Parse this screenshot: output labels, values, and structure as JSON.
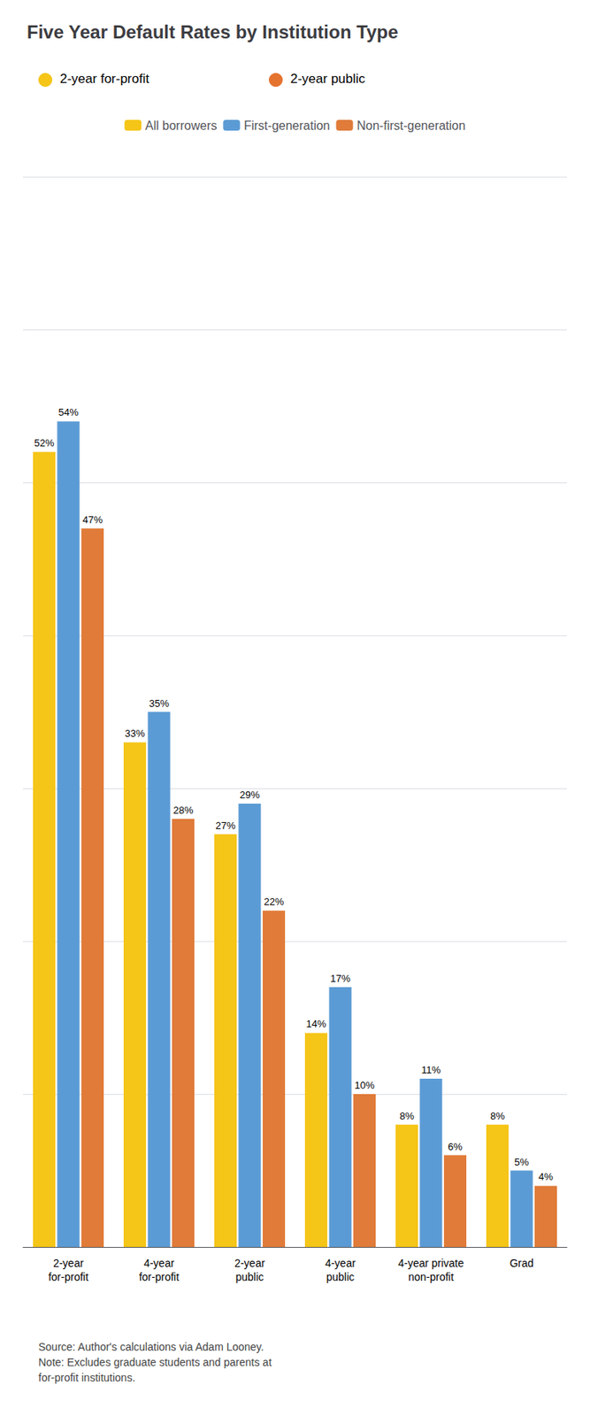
{
  "chart_data": {
    "type": "bar",
    "title": "Five Year Default Rates by Institution Type",
    "categories": [
      "2-year\nfor-profit",
      "4-year\nfor-profit",
      "2-year\npublic",
      "4-year\npublic",
      "4-year private\nnon-profit",
      "Grad"
    ],
    "series": [
      {
        "name": "All borrowers",
        "color": "#f5c518",
        "values": [
          52,
          33,
          27,
          14,
          8,
          8
        ],
        "value_labels": [
          "52%",
          "33%",
          "27%",
          "14%",
          "8%",
          "8%"
        ]
      },
      {
        "name": "First-generation",
        "color": "#5b9bd5",
        "values": [
          54,
          35,
          29,
          17,
          11,
          5
        ],
        "value_labels": [
          "54%",
          "35%",
          "29%",
          "17%",
          "11%",
          "5%"
        ]
      },
      {
        "name": "Non-first-generation",
        "color": "#e07b39",
        "values": [
          47,
          28,
          22,
          10,
          6,
          4
        ],
        "value_labels": [
          "47%",
          "28%",
          "22%",
          "10%",
          "6%",
          "4%"
        ]
      }
    ],
    "annotations": [
      {
        "text": "2-year for-profit",
        "color": "#f5c518"
      },
      {
        "text": "2-year public",
        "color": "#e57330"
      },
      {
        "text": "Source: Author's calculations via Adam Looney.\nNote: Excludes graduate students and parents at\nfor-profit institutions."
      }
    ],
    "ylim": [
      0,
      70
    ],
    "yticks": [
      0,
      10,
      20,
      30,
      40,
      50,
      60,
      70
    ],
    "grid": true,
    "legend": "top",
    "data_labels": true,
    "tick_labels": "x"
  }
}
